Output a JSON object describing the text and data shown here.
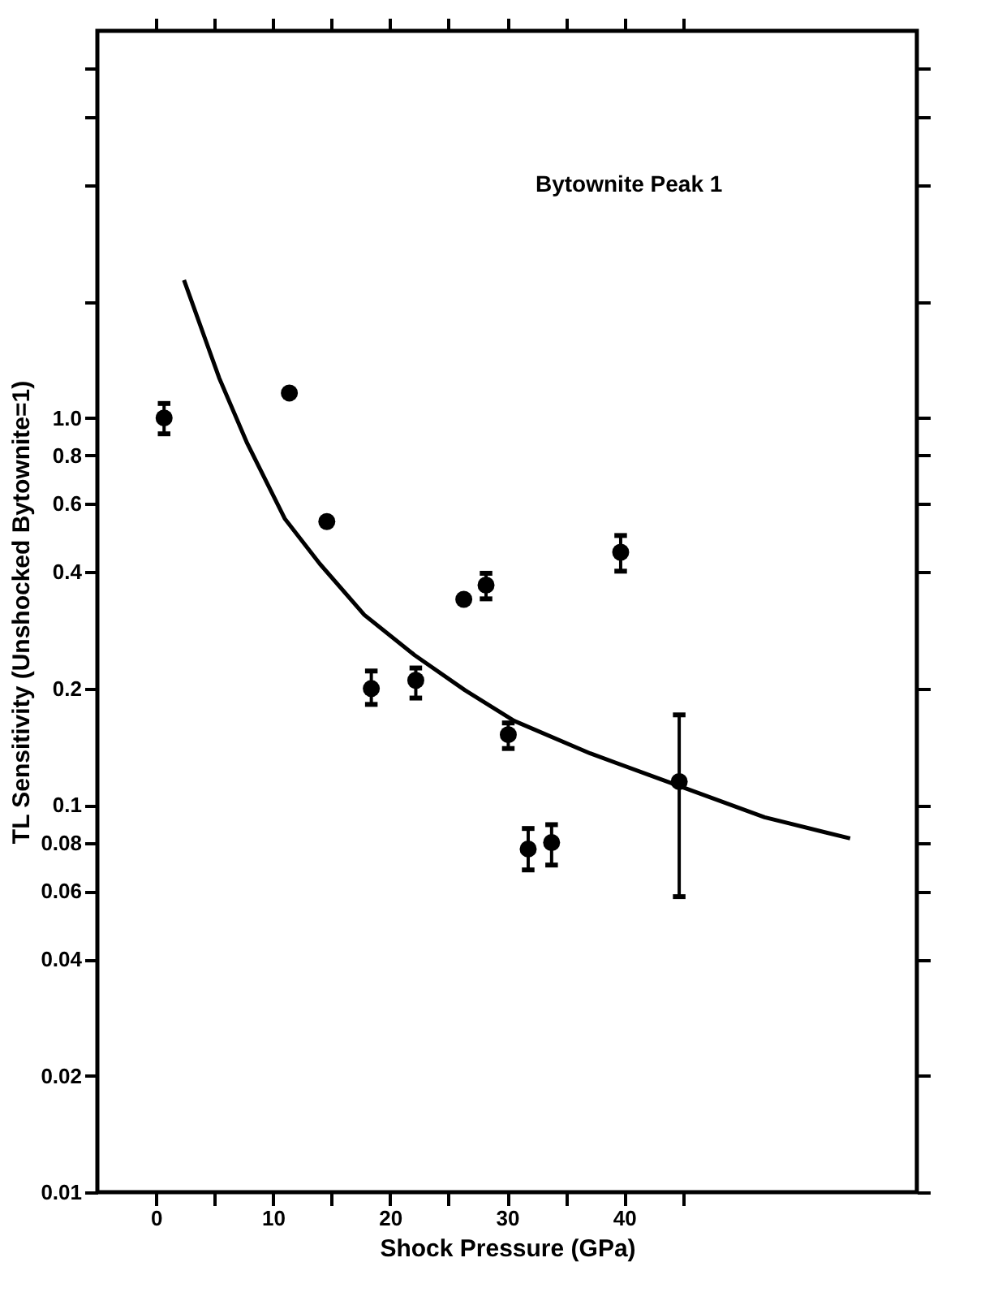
{
  "chart_data": {
    "type": "scatter",
    "xlabel": "Shock Pressure (GPa)",
    "ylabel": "TL Sensitivity (Unshocked Bytownite=1)",
    "annotations": [
      "Bytownite Peak 1"
    ],
    "log": "y",
    "grid": false,
    "marker": "circle",
    "xlim": [
      -5,
      65
    ],
    "xticks": [
      0,
      10,
      20,
      30,
      40,
      {
        "value": 5,
        "label": null
      },
      {
        "value": 15,
        "label": null
      },
      {
        "value": 25,
        "label": null
      },
      {
        "value": 35,
        "label": null
      },
      {
        "value": 45,
        "label": null
      }
    ],
    "ylim": [
      0.01,
      10
    ],
    "yticks": [
      0.01,
      0.02,
      0.04,
      0.06,
      0.08,
      0.1,
      0.2,
      0.4,
      0.6,
      0.8,
      {
        "value": 1,
        "label": "1.0"
      },
      {
        "value": 2,
        "label": null
      },
      {
        "value": 4,
        "label": null
      },
      {
        "value": 6,
        "label": null
      },
      {
        "value": 8,
        "label": null
      }
    ],
    "series": [
      {
        "color": "#000000",
        "x": [
          0.7,
          11.4,
          14.6,
          18.4,
          22.2,
          26.3,
          28.2,
          30.1,
          31.8,
          33.8,
          39.7,
          44.7
        ],
        "values": [
          1.0,
          1.16,
          0.54,
          0.2,
          0.21,
          0.34,
          0.37,
          0.152,
          0.077,
          0.08,
          0.45,
          0.115
        ],
        "errors": [
          [
            0.91,
            1.09
          ],
          null,
          null,
          [
            0.182,
            0.222
          ],
          [
            0.189,
            0.226
          ],
          null,
          [
            0.341,
            0.397
          ],
          [
            0.14,
            0.163
          ],
          [
            0.068,
            0.087
          ],
          [
            0.07,
            0.089
          ],
          [
            0.402,
            0.497
          ],
          [
            0.058,
            0.171
          ]
        ]
      },
      {
        "type": "line",
        "color": "#000000",
        "marker": "none",
        "line_style": "solid",
        "x": [
          2.4,
          5.4,
          7.8,
          11.0,
          14.0,
          17.8,
          22.1,
          26.4,
          30.6,
          37.1,
          43.0,
          52.0,
          59.3
        ],
        "values": [
          2.27,
          1.27,
          0.86,
          0.55,
          0.42,
          0.31,
          0.244,
          0.198,
          0.165,
          0.136,
          0.117,
          0.093,
          0.082
        ]
      }
    ]
  }
}
